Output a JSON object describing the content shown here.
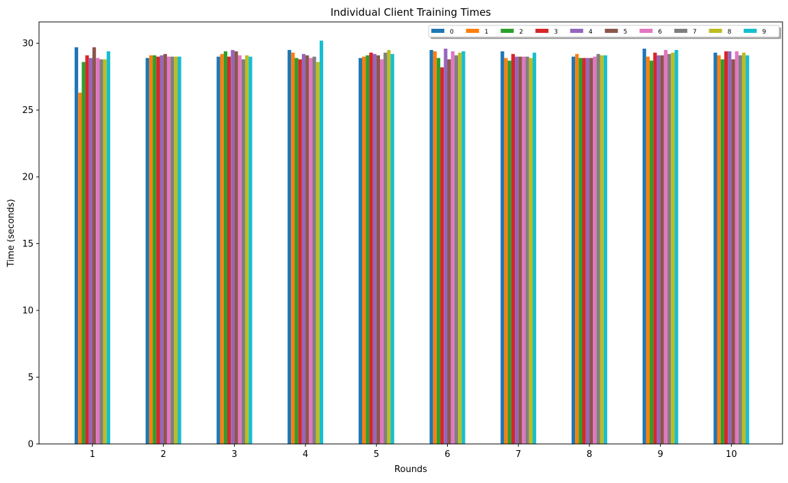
{
  "chart_data": {
    "type": "bar",
    "title": "Individual Client Training Times",
    "xlabel": "Rounds",
    "ylabel": "Time (seconds)",
    "ylim": [
      0,
      31.6
    ],
    "yticks": [
      0,
      5,
      10,
      15,
      20,
      25,
      30
    ],
    "categories": [
      "1",
      "2",
      "3",
      "4",
      "5",
      "6",
      "7",
      "8",
      "9",
      "10"
    ],
    "legend_position": "top-right",
    "grid": false,
    "series": [
      {
        "name": "0",
        "color": "#1f77b4",
        "values": [
          29.7,
          28.9,
          29.0,
          29.5,
          28.9,
          29.5,
          29.4,
          29.0,
          29.6,
          29.3
        ]
      },
      {
        "name": "1",
        "color": "#ff7f0e",
        "values": [
          26.3,
          29.1,
          29.2,
          29.3,
          29.0,
          29.4,
          28.9,
          29.2,
          29.0,
          29.1
        ]
      },
      {
        "name": "2",
        "color": "#2ca02c",
        "values": [
          28.6,
          29.1,
          29.4,
          28.9,
          29.1,
          28.9,
          28.7,
          28.9,
          28.7,
          28.8
        ]
      },
      {
        "name": "3",
        "color": "#d62728",
        "values": [
          29.1,
          29.0,
          29.0,
          28.8,
          29.3,
          28.2,
          29.2,
          28.9,
          29.3,
          29.4
        ]
      },
      {
        "name": "4",
        "color": "#9467bd",
        "values": [
          28.9,
          29.1,
          29.5,
          29.2,
          29.2,
          29.6,
          29.0,
          28.9,
          29.1,
          29.4
        ]
      },
      {
        "name": "5",
        "color": "#8c564b",
        "values": [
          29.7,
          29.2,
          29.4,
          29.1,
          29.1,
          28.8,
          29.0,
          28.9,
          29.1,
          28.8
        ]
      },
      {
        "name": "6",
        "color": "#e377c2",
        "values": [
          28.9,
          29.0,
          29.1,
          28.9,
          28.8,
          29.4,
          29.0,
          29.0,
          29.5,
          29.4
        ]
      },
      {
        "name": "7",
        "color": "#7f7f7f",
        "values": [
          28.8,
          29.0,
          28.8,
          29.0,
          29.3,
          29.1,
          29.0,
          29.2,
          29.2,
          29.1
        ]
      },
      {
        "name": "8",
        "color": "#bcbd22",
        "values": [
          28.8,
          29.0,
          29.1,
          28.6,
          29.5,
          29.3,
          28.9,
          29.1,
          29.3,
          29.3
        ]
      },
      {
        "name": "9",
        "color": "#17becf",
        "values": [
          29.4,
          29.0,
          29.0,
          30.2,
          29.2,
          29.4,
          29.3,
          29.1,
          29.5,
          29.1
        ]
      }
    ]
  }
}
